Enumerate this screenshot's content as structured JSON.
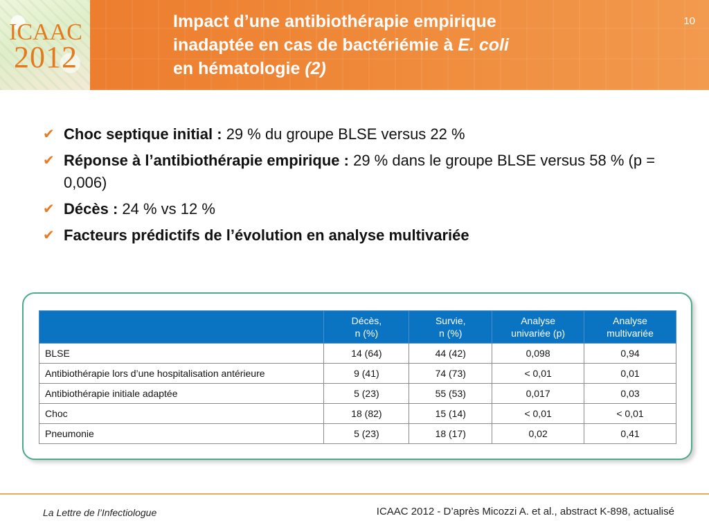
{
  "header": {
    "logo_line1": "ICAAC",
    "logo_line2": "2012",
    "title_line1": "Impact d’une antibiothérapie empirique",
    "title_line2_prefix": "inadaptée en cas de bactériémie à ",
    "title_line2_italic": "E. coli",
    "title_line3_prefix": "en hématologie ",
    "title_line3_italic": "(2)",
    "slide_number": "10"
  },
  "bullets": [
    {
      "bold": "Choc septique initial : ",
      "text": "29 % du groupe BLSE versus 22 %"
    },
    {
      "bold": "Réponse à l’antibiothérapie empirique : ",
      "text": "29 % dans le groupe BLSE versus 58 % (p = 0,006)"
    },
    {
      "bold": "Décès : ",
      "text": "24 % vs 12 %"
    },
    {
      "bold": "Facteurs prédictifs de l’évolution en analyse multivariée",
      "text": ""
    }
  ],
  "table": {
    "headers": [
      {
        "line1": "",
        "line2": ""
      },
      {
        "line1": "Décès,",
        "line2": "n (%)"
      },
      {
        "line1": "Survie,",
        "line2": "n (%)"
      },
      {
        "line1": "Analyse",
        "line2": "univariée (p)"
      },
      {
        "line1": "Analyse",
        "line2": "multivariée"
      }
    ],
    "rows": [
      [
        "BLSE",
        "14 (64)",
        "44 (42)",
        "0,098",
        "0,94"
      ],
      [
        "Antibiothérapie lors d’une hospitalisation antérieure",
        "9 (41)",
        "74 (73)",
        "< 0,01",
        "0,01"
      ],
      [
        "Antibiothérapie initiale adaptée",
        "5 (23)",
        "55 (53)",
        "0,017",
        "0,03"
      ],
      [
        "Choc",
        "18 (82)",
        "15 (14)",
        "< 0,01",
        "< 0,01"
      ],
      [
        "Pneumonie",
        "5 (23)",
        "18 (17)",
        "0,02",
        "0,41"
      ]
    ]
  },
  "footer": {
    "left": "La Lettre de l’Infectiologue",
    "right": "ICAAC 2012 - D’après Micozzi A. et al., abstract K-898, actualisé"
  },
  "colors": {
    "header_orange": "#ec7a2b",
    "table_header_blue": "#0a74c2",
    "panel_border_green": "#4aaa8a",
    "check_orange": "#e97a22"
  },
  "icons": {
    "bullet": "check-icon"
  }
}
